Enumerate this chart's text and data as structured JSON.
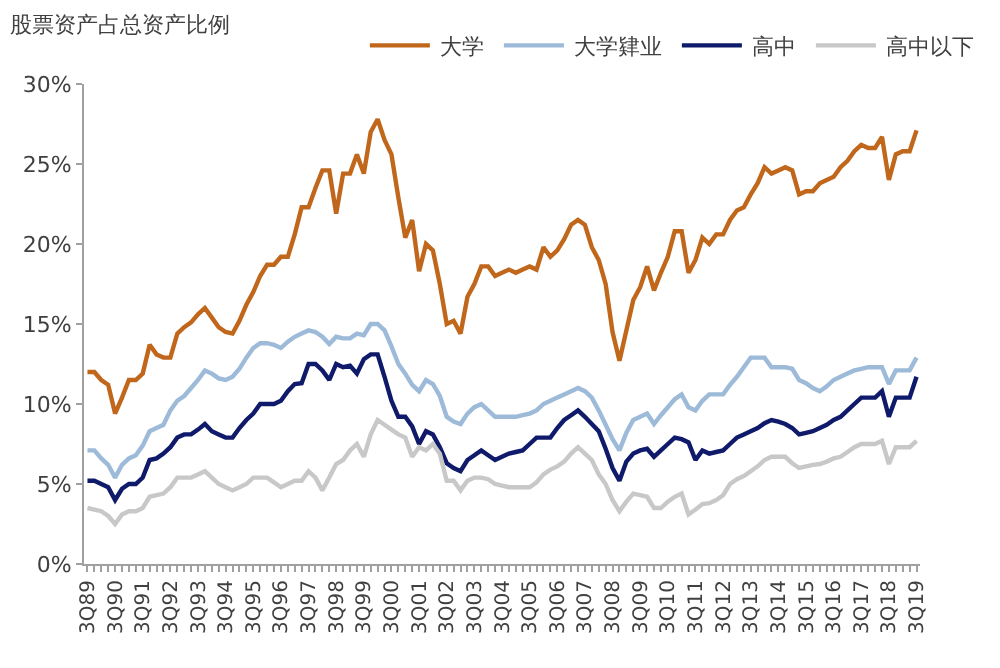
{
  "chart_data": {
    "type": "line",
    "title": "股票资产占总资产比例",
    "categories": [
      "3Q89",
      null,
      null,
      null,
      "3Q90",
      null,
      null,
      null,
      "3Q91",
      null,
      null,
      null,
      "3Q92",
      null,
      null,
      null,
      "3Q93",
      null,
      null,
      null,
      "3Q94",
      null,
      null,
      null,
      "3Q95",
      null,
      null,
      null,
      "3Q96",
      null,
      null,
      null,
      "3Q97",
      null,
      null,
      null,
      "3Q98",
      null,
      null,
      null,
      "3Q99",
      null,
      null,
      null,
      "3Q00",
      null,
      null,
      null,
      "3Q01",
      null,
      null,
      null,
      "3Q02",
      null,
      null,
      null,
      "3Q03",
      null,
      null,
      null,
      "3Q04",
      null,
      null,
      null,
      "3Q05",
      null,
      null,
      null,
      "3Q06",
      null,
      null,
      null,
      "3Q07",
      null,
      null,
      null,
      "3Q08",
      null,
      null,
      null,
      "3Q09",
      null,
      null,
      null,
      "3Q10",
      null,
      null,
      null,
      "3Q11",
      null,
      null,
      null,
      "3Q12",
      null,
      null,
      null,
      "3Q13",
      null,
      null,
      null,
      "3Q14",
      null,
      null,
      null,
      "3Q15",
      null,
      null,
      null,
      "3Q16",
      null,
      null,
      null,
      "3Q17",
      null,
      null,
      null,
      "3Q18",
      null,
      null,
      null,
      "3Q19"
    ],
    "series": [
      {
        "name": "大学",
        "color": "#c0671c",
        "values": [
          12,
          12,
          11.5,
          11.2,
          9.4,
          10.4,
          11.5,
          11.5,
          11.9,
          13.7,
          13.1,
          12.9,
          12.9,
          14.4,
          14.8,
          15.1,
          15.6,
          16,
          15.4,
          14.8,
          14.5,
          14.4,
          15.2,
          16.2,
          17,
          18,
          18.7,
          18.7,
          19.2,
          19.2,
          20.6,
          22.3,
          22.3,
          23.5,
          24.6,
          24.6,
          21.9,
          24.4,
          24.4,
          25.6,
          24.4,
          27,
          27.8,
          26.5,
          25.6,
          22.9,
          20.4,
          21.5,
          18.3,
          20,
          19.6,
          17.5,
          15,
          15.2,
          14.4,
          16.7,
          17.5,
          18.6,
          18.6,
          18,
          18.2,
          18.4,
          18.2,
          18.4,
          18.6,
          18.4,
          19.8,
          19.2,
          19.6,
          20.3,
          21.2,
          21.5,
          21.2,
          19.8,
          19,
          17.5,
          14.5,
          12.7,
          14.6,
          16.5,
          17.3,
          18.6,
          17.1,
          18.2,
          19.2,
          20.8,
          20.8,
          18.2,
          19,
          20.4,
          20,
          20.6,
          20.6,
          21.5,
          22.1,
          22.3,
          23.1,
          23.8,
          24.8,
          24.4,
          24.6,
          24.8,
          24.6,
          23.1,
          23.3,
          23.3,
          23.8,
          24,
          24.2,
          24.8,
          25.2,
          25.8,
          26.2,
          26,
          26,
          26.7,
          24,
          25.6,
          25.8,
          25.8,
          27.1
        ]
      },
      {
        "name": "大学肄业",
        "color": "#9dbad9",
        "values": [
          7.1,
          7.1,
          6.6,
          6.2,
          5.4,
          6.2,
          6.6,
          6.8,
          7.4,
          8.3,
          8.5,
          8.7,
          9.6,
          10.2,
          10.5,
          11,
          11.5,
          12.1,
          11.9,
          11.6,
          11.5,
          11.7,
          12.2,
          12.9,
          13.5,
          13.8,
          13.8,
          13.7,
          13.5,
          13.9,
          14.2,
          14.4,
          14.6,
          14.5,
          14.2,
          13.75,
          14.2,
          14.1,
          14.1,
          14.4,
          14.3,
          15,
          15,
          14.6,
          13.6,
          12.5,
          11.9,
          11.2,
          10.8,
          11.5,
          11.25,
          10.5,
          9.2,
          8.9,
          8.75,
          9.4,
          9.8,
          10,
          9.6,
          9.2,
          9.2,
          9.2,
          9.2,
          9.3,
          9.4,
          9.6,
          10,
          10.2,
          10.4,
          10.6,
          10.8,
          11,
          10.8,
          10.4,
          9.6,
          8.7,
          7.8,
          7.1,
          8.2,
          9,
          9.2,
          9.4,
          8.75,
          9.3,
          9.8,
          10.3,
          10.6,
          9.8,
          9.6,
          10.2,
          10.6,
          10.6,
          10.6,
          11.2,
          11.7,
          12.3,
          12.9,
          12.9,
          12.9,
          12.3,
          12.3,
          12.3,
          12.2,
          11.5,
          11.3,
          11,
          10.8,
          11.1,
          11.5,
          11.7,
          11.9,
          12.1,
          12.2,
          12.3,
          12.3,
          12.3,
          11.25,
          12.1,
          12.1,
          12.1,
          12.9
        ]
      },
      {
        "name": "高中",
        "color": "#0f1a6b",
        "values": [
          5.2,
          5.2,
          5,
          4.8,
          4,
          4.7,
          5,
          5,
          5.4,
          6.5,
          6.6,
          6.9,
          7.3,
          7.9,
          8.1,
          8.1,
          8.4,
          8.75,
          8.3,
          8.1,
          7.9,
          7.9,
          8.5,
          9,
          9.4,
          10,
          10,
          10,
          10.2,
          10.8,
          11.25,
          11.3,
          12.5,
          12.5,
          12.1,
          11.5,
          12.5,
          12.3,
          12.4,
          11.9,
          12.8,
          13.1,
          13.1,
          11.7,
          10.2,
          9.2,
          9.2,
          8.6,
          7.5,
          8.3,
          8.1,
          7.3,
          6.3,
          6,
          5.8,
          6.5,
          6.8,
          7.1,
          6.8,
          6.5,
          6.7,
          6.9,
          7,
          7.1,
          7.5,
          7.9,
          7.9,
          7.9,
          8.5,
          9,
          9.3,
          9.6,
          9.2,
          8.75,
          8.3,
          7.2,
          6,
          5.2,
          6.4,
          6.9,
          7.1,
          7.2,
          6.7,
          7.1,
          7.5,
          7.9,
          7.8,
          7.6,
          6.5,
          7.1,
          6.9,
          7,
          7.1,
          7.5,
          7.9,
          8.1,
          8.3,
          8.5,
          8.8,
          9,
          8.9,
          8.75,
          8.5,
          8.1,
          8.2,
          8.3,
          8.5,
          8.7,
          9,
          9.2,
          9.6,
          10,
          10.4,
          10.4,
          10.4,
          10.8,
          9.2,
          10.4,
          10.4,
          10.4,
          11.7
        ]
      },
      {
        "name": "高中以下",
        "color": "#c8c8c8",
        "values": [
          3.5,
          3.4,
          3.3,
          3,
          2.5,
          3.1,
          3.3,
          3.3,
          3.5,
          4.2,
          4.3,
          4.4,
          4.8,
          5.4,
          5.4,
          5.4,
          5.6,
          5.8,
          5.4,
          5,
          4.8,
          4.6,
          4.8,
          5,
          5.4,
          5.4,
          5.4,
          5.1,
          4.8,
          5,
          5.2,
          5.2,
          5.8,
          5.4,
          4.6,
          5.4,
          6.25,
          6.5,
          7.1,
          7.5,
          6.7,
          8.1,
          9,
          8.7,
          8.4,
          8.1,
          7.9,
          6.7,
          7.3,
          7.1,
          7.5,
          6.9,
          5.2,
          5.2,
          4.6,
          5.2,
          5.4,
          5.4,
          5.3,
          5,
          4.9,
          4.8,
          4.8,
          4.8,
          4.8,
          5.1,
          5.6,
          5.9,
          6.1,
          6.4,
          6.9,
          7.3,
          6.9,
          6.5,
          5.6,
          5,
          4,
          3.3,
          3.9,
          4.4,
          4.3,
          4.2,
          3.5,
          3.5,
          3.9,
          4.2,
          4.4,
          3.1,
          3.4,
          3.75,
          3.8,
          4,
          4.3,
          5,
          5.3,
          5.5,
          5.8,
          6.1,
          6.5,
          6.7,
          6.7,
          6.7,
          6.3,
          6,
          6.1,
          6.2,
          6.25,
          6.4,
          6.6,
          6.7,
          7,
          7.3,
          7.5,
          7.5,
          7.5,
          7.7,
          6.25,
          7.3,
          7.3,
          7.3,
          7.7
        ]
      }
    ],
    "ylim": [
      0,
      30
    ],
    "yticks": [
      {
        "value": 0,
        "label": "0%"
      },
      {
        "value": 5,
        "label": "5%"
      },
      {
        "value": 10,
        "label": "10%"
      },
      {
        "value": 15,
        "label": "15%"
      },
      {
        "value": 20,
        "label": "20%"
      },
      {
        "value": 25,
        "label": "25%"
      },
      {
        "value": 30,
        "label": "30%"
      }
    ],
    "grid": false,
    "legend": "top",
    "marker": "none",
    "line_style": "solid"
  }
}
